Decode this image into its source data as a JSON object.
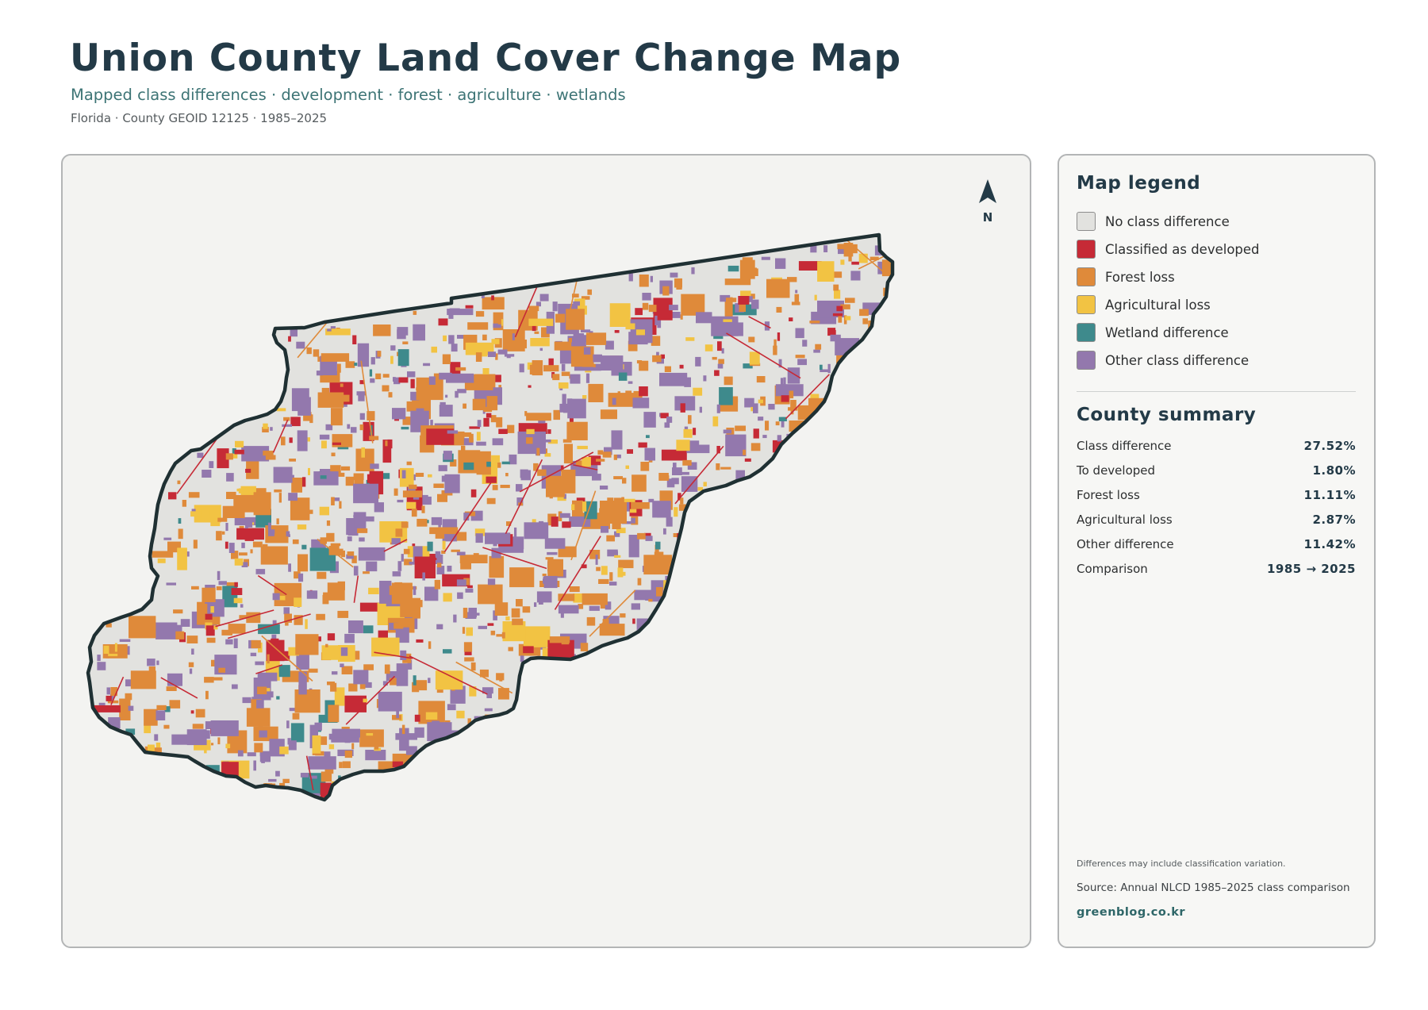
{
  "header": {
    "title": "Union County Land Cover Change Map",
    "subtitle": "Mapped class differences · development · forest · agriculture · wetlands",
    "meta": "Florida · County GEOID 12125 · 1985–2025"
  },
  "map": {
    "north_label": "N",
    "colors": {
      "no_change": "#e2e2df",
      "developed": "#c62a36",
      "forest_loss": "#df8a3a",
      "agricultural_loss": "#f2c343",
      "wetland": "#3e8a8c",
      "other": "#9378ad",
      "boundary": "#1f3033"
    }
  },
  "legend": {
    "title": "Map legend",
    "items": [
      {
        "label": "No class difference",
        "color": "#e2e2df"
      },
      {
        "label": "Classified as developed",
        "color": "#c62a36"
      },
      {
        "label": "Forest loss",
        "color": "#df8a3a"
      },
      {
        "label": "Agricultural loss",
        "color": "#f2c343"
      },
      {
        "label": "Wetland difference",
        "color": "#3e8a8c"
      },
      {
        "label": "Other class difference",
        "color": "#9378ad"
      }
    ]
  },
  "summary": {
    "title": "County summary",
    "rows": [
      {
        "label": "Class difference",
        "value": "27.52%"
      },
      {
        "label": "To developed",
        "value": "1.80%"
      },
      {
        "label": "Forest loss",
        "value": "11.11%"
      },
      {
        "label": "Agricultural loss",
        "value": "2.87%"
      },
      {
        "label": "Other difference",
        "value": "11.42%"
      },
      {
        "label": "Comparison",
        "value": "1985 → 2025"
      }
    ]
  },
  "footer": {
    "note": "Differences may include classification variation.",
    "source": "Source: Annual NLCD 1985–2025 class comparison",
    "site": "greenblog.co.kr"
  }
}
